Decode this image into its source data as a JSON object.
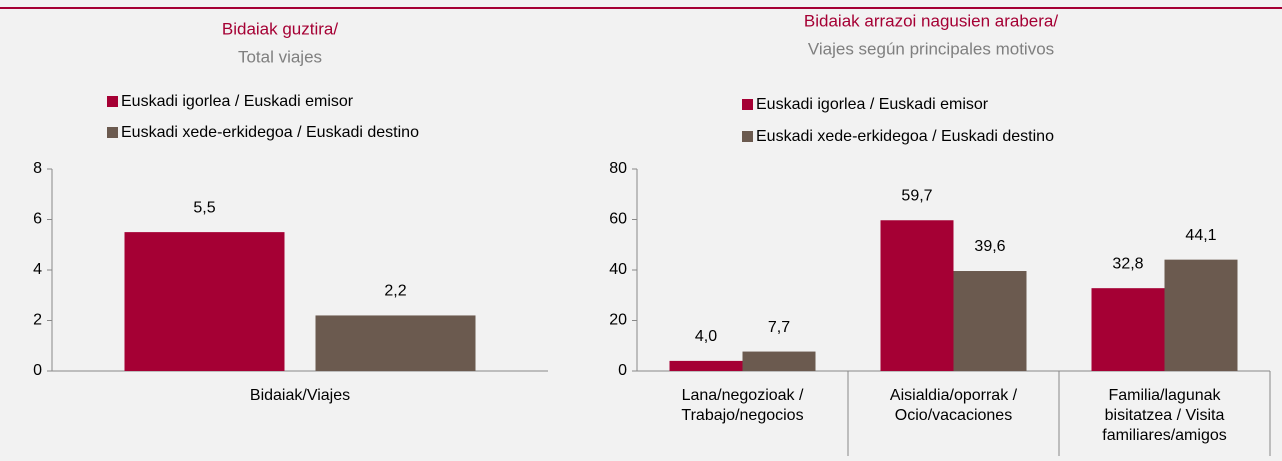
{
  "chart_data": [
    {
      "type": "bar",
      "title": "Bidaiak guztira/",
      "subtitle": "Total viajes",
      "categories": [
        "Bidaiak/Viajes"
      ],
      "series": [
        {
          "name": "Euskadi igorlea / Euskadi emisor",
          "color": "#a50034",
          "values": [
            5.5
          ],
          "value_labels": [
            "5,5"
          ]
        },
        {
          "name": "Euskadi xede-erkidegoa / Euskadi destino",
          "color": "#6b5a4f",
          "values": [
            2.2
          ],
          "value_labels": [
            "2,2"
          ]
        }
      ],
      "ylim": [
        0,
        8
      ],
      "yticks": [
        0,
        2,
        4,
        6,
        8
      ]
    },
    {
      "type": "bar",
      "title": "Bidaiak arrazoi nagusien arabera/",
      "subtitle": "Viajes según principales motivos",
      "categories": [
        "Lana/negozioak /\nTrabajo/negocios",
        "Aisialdia/oporrak /\nOcio/vacaciones",
        "Familia/lagunak\nbisitatzea / Visita\nfamiliares/amigos"
      ],
      "series": [
        {
          "name": "Euskadi igorlea / Euskadi emisor",
          "color": "#a50034",
          "values": [
            4.0,
            59.7,
            32.8
          ],
          "value_labels": [
            "4,0",
            "59,7",
            "32,8"
          ]
        },
        {
          "name": "Euskadi xede-erkidegoa / Euskadi destino",
          "color": "#6b5a4f",
          "values": [
            7.7,
            39.6,
            44.1
          ],
          "value_labels": [
            "7,7",
            "39,6",
            "44,1"
          ]
        }
      ],
      "ylim": [
        0,
        80
      ],
      "yticks": [
        0,
        20,
        40,
        60,
        80
      ]
    }
  ]
}
